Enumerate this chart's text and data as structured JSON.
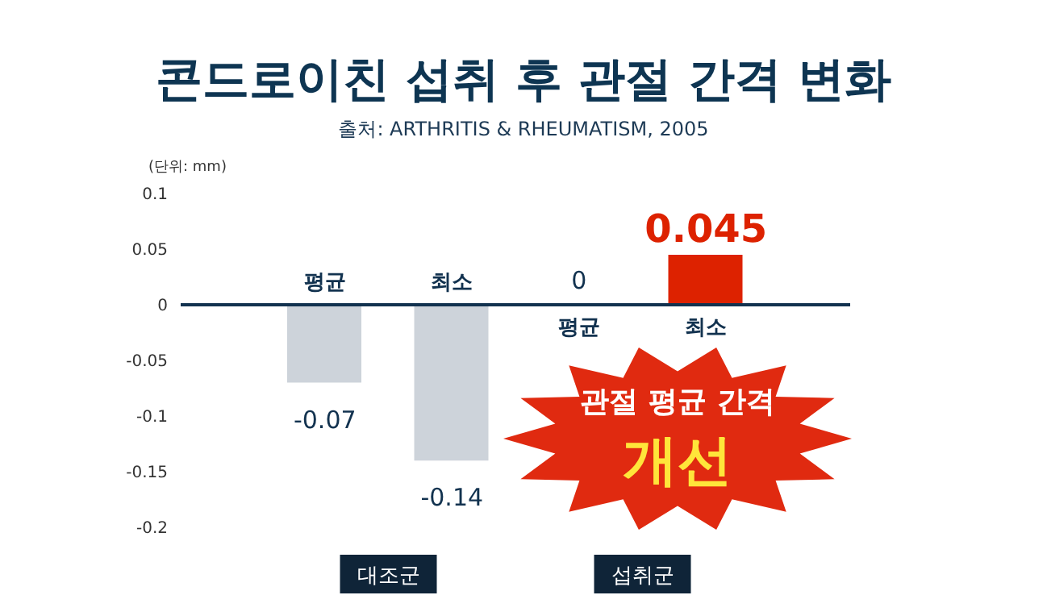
{
  "chart_data": {
    "type": "bar",
    "title": "콘드로이친 섭취 후 관절 간격 변화",
    "subtitle": "출처: ARTHRITIS & RHEUMATISM, 2005",
    "ylabel": "(단위: mm)",
    "categories": [
      "평균",
      "최소",
      "평균",
      "최소"
    ],
    "values": [
      -0.07,
      -0.14,
      0,
      0.045
    ],
    "colors": [
      "#cdd3da",
      "#cdd3da",
      "#cdd3da",
      "#dd2200"
    ],
    "value_labels": [
      "-0.07",
      "-0.14",
      "0",
      "0.045"
    ],
    "ylim": [
      -0.2,
      0.1
    ],
    "yticks": [
      0.1,
      0.05,
      0,
      -0.05,
      -0.1,
      -0.15,
      -0.2
    ],
    "annotations": [
      "대조군",
      "섭취군",
      "관절 평균 간격",
      "개선"
    ]
  }
}
